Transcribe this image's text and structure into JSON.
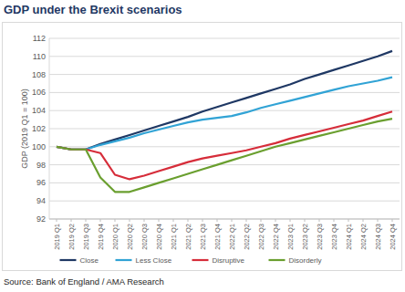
{
  "chart_data": {
    "type": "line",
    "title": "GDP under the Brexit scenarios",
    "y_label": "GDP (2019 Q1 = 100)",
    "source": "Source: Bank of England / AMA Research",
    "categories": [
      "2019 Q1",
      "2019 Q2",
      "2019 Q3",
      "2019 Q4",
      "2020 Q1",
      "2020 Q2",
      "2020 Q3",
      "2020 Q4",
      "2021 Q1",
      "2021 Q2",
      "2021 Q3",
      "2021 Q4",
      "2022 Q1",
      "2022 Q2",
      "2022 Q3",
      "2022 Q4",
      "2023 Q1",
      "2023 Q2",
      "2023 Q3",
      "2023 Q4",
      "2024 Q1",
      "2024 Q2",
      "2024 Q3",
      "2024 Q4"
    ],
    "series": [
      {
        "name": "Close",
        "color": "#1f3864",
        "values": [
          100,
          99.7,
          99.7,
          100.3,
          100.8,
          101.3,
          101.8,
          102.3,
          102.8,
          103.3,
          103.9,
          104.4,
          104.9,
          105.4,
          105.9,
          106.4,
          106.9,
          107.5,
          108.0,
          108.5,
          109.0,
          109.5,
          110.0,
          110.6
        ]
      },
      {
        "name": "Less Close",
        "color": "#31a3d5",
        "values": [
          100,
          99.7,
          99.7,
          100.2,
          100.6,
          101.0,
          101.5,
          101.9,
          102.3,
          102.7,
          103.0,
          103.2,
          103.4,
          103.8,
          104.3,
          104.7,
          105.1,
          105.5,
          105.9,
          106.3,
          106.7,
          107.0,
          107.3,
          107.7
        ]
      },
      {
        "name": "Disruptive",
        "color": "#d62d3a",
        "values": [
          100,
          99.7,
          99.7,
          99.3,
          96.9,
          96.4,
          96.8,
          97.3,
          97.8,
          98.3,
          98.7,
          99.0,
          99.3,
          99.6,
          100.0,
          100.4,
          100.9,
          101.3,
          101.7,
          102.1,
          102.5,
          102.9,
          103.4,
          103.9
        ]
      },
      {
        "name": "Disorderly",
        "color": "#6a9f2f",
        "values": [
          100,
          99.7,
          99.7,
          96.6,
          95.0,
          95.0,
          95.5,
          96.0,
          96.5,
          97.0,
          97.5,
          98.0,
          98.5,
          99.0,
          99.5,
          100.0,
          100.4,
          100.8,
          101.2,
          101.6,
          102.0,
          102.4,
          102.8,
          103.1
        ]
      }
    ],
    "ylim": [
      92,
      112
    ],
    "yticks": [
      92,
      94,
      96,
      98,
      100,
      102,
      104,
      106,
      108,
      110,
      112
    ],
    "grid": true,
    "legend": "bottom"
  }
}
